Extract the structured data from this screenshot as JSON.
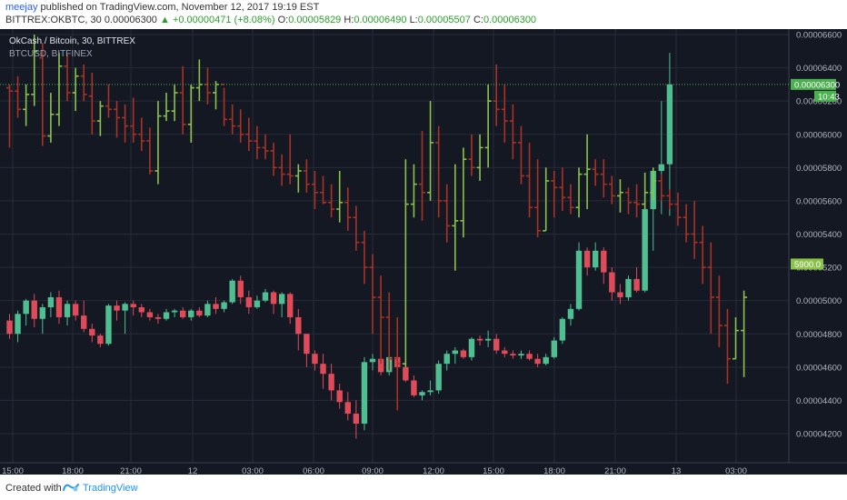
{
  "header": {
    "author": "meejay",
    "published_text": " published on TradingView.com, November 12, 2017 19:19 EST",
    "symbol": "BITTREX:OKBTC, 30",
    "price": "0.00006300",
    "change": "+0.00000471 (+8.08%)",
    "o_label": "O:",
    "o_value": "0.00005829",
    "h_label": "H:",
    "h_value": "0.00006490",
    "l_label": "L:",
    "l_value": "0.00005507",
    "c_label": "C:",
    "c_value": "0.00006300"
  },
  "overlay": {
    "title": "OkCash / Bitcoin, 30, BITTREX",
    "subtitle": "BTCUSD, BITFINEX"
  },
  "footer": {
    "created_with": "Created with",
    "brand": "TradingView"
  },
  "colors": {
    "background": "#141823",
    "grid": "#262b38",
    "up_bar": "#8bc34a",
    "down_bar": "#a93226",
    "up_candle": "#4fbf92",
    "down_candle": "#e04b5a",
    "price_label": "#4caf50",
    "btc_label": "#8bc34a"
  },
  "chart_data": {
    "type": "ohlc",
    "y_axis": {
      "ticks": [
        "0.00006600",
        "0.00006400",
        "0.00006200",
        "0.00006000",
        "0.00005800",
        "0.00005600",
        "0.00005400",
        "0.00005200",
        "0.00005000",
        "0.00004800",
        "0.00004600",
        "0.00004400",
        "0.00004200"
      ],
      "range": [
        4.1e-05,
        6.68e-05
      ]
    },
    "x_axis": {
      "ticks": [
        "15:00",
        "18:00",
        "21:00",
        "12",
        "03:00",
        "06:00",
        "09:00",
        "12:00",
        "15:00",
        "18:00",
        "21:00",
        "13",
        "03:00"
      ]
    },
    "last_price_label": "0.00006300",
    "countdown_label": "10:43",
    "btc_price_label": "5900.0",
    "okbtc_bars": [
      {
        "o": 62.8,
        "h": 63.0,
        "l": 59.2,
        "c": 62.6
      },
      {
        "o": 62.6,
        "h": 63.5,
        "l": 61.0,
        "c": 61.5
      },
      {
        "o": 61.5,
        "h": 63.0,
        "l": 60.5,
        "c": 62.4
      },
      {
        "o": 62.4,
        "h": 66.0,
        "l": 61.7,
        "c": 65.0
      },
      {
        "o": 64.6,
        "h": 65.5,
        "l": 59.3,
        "c": 59.9
      },
      {
        "o": 59.9,
        "h": 62.5,
        "l": 59.5,
        "c": 61.2
      },
      {
        "o": 61.2,
        "h": 64.9,
        "l": 60.5,
        "c": 64.1
      },
      {
        "o": 64.1,
        "h": 64.8,
        "l": 62.0,
        "c": 62.5
      },
      {
        "o": 62.5,
        "h": 64.0,
        "l": 61.4,
        "c": 63.5
      },
      {
        "o": 63.5,
        "h": 64.2,
        "l": 62.0,
        "c": 62.4
      },
      {
        "o": 62.3,
        "h": 63.7,
        "l": 60.0,
        "c": 60.8
      },
      {
        "o": 60.8,
        "h": 62.0,
        "l": 59.9,
        "c": 61.7
      },
      {
        "o": 61.7,
        "h": 63.0,
        "l": 61.0,
        "c": 61.5
      },
      {
        "o": 61.5,
        "h": 62.0,
        "l": 59.8,
        "c": 61.0
      },
      {
        "o": 61.0,
        "h": 61.8,
        "l": 59.5,
        "c": 60.5
      },
      {
        "o": 60.5,
        "h": 62.2,
        "l": 59.5,
        "c": 60.0
      },
      {
        "o": 60.0,
        "h": 61.0,
        "l": 59.0,
        "c": 59.6
      },
      {
        "o": 59.6,
        "h": 60.4,
        "l": 57.6,
        "c": 57.8
      },
      {
        "o": 57.8,
        "h": 62.0,
        "l": 57.0,
        "c": 61.1
      },
      {
        "o": 61.1,
        "h": 62.5,
        "l": 60.8,
        "c": 61.4
      },
      {
        "o": 61.4,
        "h": 63.0,
        "l": 60.8,
        "c": 62.5
      },
      {
        "o": 62.5,
        "h": 64.1,
        "l": 60.0,
        "c": 60.6
      },
      {
        "o": 60.6,
        "h": 63.0,
        "l": 59.5,
        "c": 62.8
      },
      {
        "o": 62.8,
        "h": 64.5,
        "l": 62.0,
        "c": 63.0
      },
      {
        "o": 63.0,
        "h": 64.0,
        "l": 61.8,
        "c": 62.5
      },
      {
        "o": 62.5,
        "h": 63.2,
        "l": 61.5,
        "c": 63.0
      },
      {
        "o": 63.0,
        "h": 62.8,
        "l": 60.5,
        "c": 60.9
      },
      {
        "o": 60.9,
        "h": 61.8,
        "l": 60.0,
        "c": 60.5
      },
      {
        "o": 60.5,
        "h": 61.5,
        "l": 59.5,
        "c": 60.0
      },
      {
        "o": 60.0,
        "h": 61.0,
        "l": 59.0,
        "c": 59.6
      },
      {
        "o": 59.6,
        "h": 60.5,
        "l": 58.5,
        "c": 59.2
      },
      {
        "o": 59.2,
        "h": 60.0,
        "l": 58.5,
        "c": 59.0
      },
      {
        "o": 59.0,
        "h": 59.5,
        "l": 57.5,
        "c": 58.0
      },
      {
        "o": 58.0,
        "h": 58.8,
        "l": 56.9,
        "c": 57.6
      },
      {
        "o": 57.6,
        "h": 60.0,
        "l": 57.0,
        "c": 57.5
      },
      {
        "o": 57.5,
        "h": 58.2,
        "l": 56.5,
        "c": 57.8
      },
      {
        "o": 57.8,
        "h": 58.5,
        "l": 56.5,
        "c": 57.0
      },
      {
        "o": 57.0,
        "h": 57.8,
        "l": 55.5,
        "c": 56.5
      },
      {
        "o": 56.5,
        "h": 57.5,
        "l": 55.8,
        "c": 55.9
      },
      {
        "o": 55.9,
        "h": 57.0,
        "l": 55.0,
        "c": 55.5
      },
      {
        "o": 55.5,
        "h": 57.8,
        "l": 54.7,
        "c": 55.9
      },
      {
        "o": 55.9,
        "h": 56.8,
        "l": 54.2,
        "c": 55.0
      },
      {
        "o": 55.0,
        "h": 55.7,
        "l": 53.0,
        "c": 53.5
      },
      {
        "o": 53.5,
        "h": 54.2,
        "l": 51.0,
        "c": 52.0
      },
      {
        "o": 52.0,
        "h": 52.8,
        "l": 48.0,
        "c": 50.2
      },
      {
        "o": 50.2,
        "h": 51.5,
        "l": 46.2,
        "c": 49.0
      },
      {
        "o": 49.0,
        "h": 50.5,
        "l": 45.8,
        "c": 46.5
      },
      {
        "o": 46.5,
        "h": 49.0,
        "l": 43.4,
        "c": 46.2
      },
      {
        "o": 46.2,
        "h": 58.5,
        "l": 46.0,
        "c": 55.8
      },
      {
        "o": 55.8,
        "h": 58.2,
        "l": 55.0,
        "c": 57.0
      },
      {
        "o": 57.0,
        "h": 60.2,
        "l": 54.8,
        "c": 56.5
      },
      {
        "o": 56.5,
        "h": 62.0,
        "l": 56.0,
        "c": 59.5
      },
      {
        "o": 59.5,
        "h": 60.5,
        "l": 55.0,
        "c": 56.0
      },
      {
        "o": 56.0,
        "h": 57.0,
        "l": 53.5,
        "c": 54.5
      },
      {
        "o": 54.5,
        "h": 58.2,
        "l": 51.8,
        "c": 54.8
      },
      {
        "o": 54.8,
        "h": 59.2,
        "l": 53.8,
        "c": 58.5
      },
      {
        "o": 58.5,
        "h": 60.0,
        "l": 57.5,
        "c": 58.0
      },
      {
        "o": 58.0,
        "h": 60.0,
        "l": 57.2,
        "c": 59.2
      },
      {
        "o": 59.2,
        "h": 63.0,
        "l": 58.0,
        "c": 62.0
      },
      {
        "o": 62.0,
        "h": 64.2,
        "l": 60.5,
        "c": 61.5
      },
      {
        "o": 61.5,
        "h": 63.0,
        "l": 59.5,
        "c": 60.8
      },
      {
        "o": 60.8,
        "h": 61.8,
        "l": 58.5,
        "c": 59.5
      },
      {
        "o": 59.5,
        "h": 60.5,
        "l": 57.0,
        "c": 57.5
      },
      {
        "o": 57.5,
        "h": 59.5,
        "l": 55.0,
        "c": 55.6
      },
      {
        "o": 55.6,
        "h": 58.5,
        "l": 53.8,
        "c": 54.2
      },
      {
        "o": 54.2,
        "h": 58.0,
        "l": 54.2,
        "c": 57.2
      },
      {
        "o": 57.2,
        "h": 57.8,
        "l": 55.0,
        "c": 56.8
      },
      {
        "o": 56.8,
        "h": 58.0,
        "l": 55.4,
        "c": 56.2
      },
      {
        "o": 56.2,
        "h": 57.0,
        "l": 55.2,
        "c": 55.6
      },
      {
        "o": 55.6,
        "h": 58.0,
        "l": 55.0,
        "c": 57.6
      },
      {
        "o": 57.6,
        "h": 60.0,
        "l": 55.5,
        "c": 57.9
      },
      {
        "o": 57.9,
        "h": 58.5,
        "l": 56.9,
        "c": 57.6
      },
      {
        "o": 57.6,
        "h": 58.5,
        "l": 56.2,
        "c": 57.0
      },
      {
        "o": 57.0,
        "h": 57.5,
        "l": 55.8,
        "c": 56.3
      },
      {
        "o": 56.3,
        "h": 57.3,
        "l": 55.3,
        "c": 56.5
      },
      {
        "o": 56.5,
        "h": 56.8,
        "l": 55.2,
        "c": 55.9
      },
      {
        "o": 55.9,
        "h": 57.0,
        "l": 55.0,
        "c": 55.8
      },
      {
        "o": 55.8,
        "h": 57.7,
        "l": 55.5,
        "c": 56.5
      },
      {
        "o": 56.5,
        "h": 58.0,
        "l": 56.0,
        "c": 57.2
      },
      {
        "o": 57.2,
        "h": 57.6,
        "l": 56.0,
        "c": 56.3
      },
      {
        "o": 56.3,
        "h": 56.7,
        "l": 55.5,
        "c": 55.8
      },
      {
        "o": 55.8,
        "h": 56.5,
        "l": 54.5,
        "c": 55.0
      },
      {
        "o": 55.0,
        "h": 55.8,
        "l": 53.5,
        "c": 54.0
      },
      {
        "o": 54.0,
        "h": 56.0,
        "l": 52.5,
        "c": 53.5
      },
      {
        "o": 53.5,
        "h": 54.5,
        "l": 51.0,
        "c": 52.0
      },
      {
        "o": 52.0,
        "h": 53.5,
        "l": 48.0,
        "c": 50.2
      },
      {
        "o": 50.2,
        "h": 51.5,
        "l": 47.2,
        "c": 48.5
      },
      {
        "o": 48.5,
        "h": 49.5,
        "l": 45.0,
        "c": 46.5
      },
      {
        "o": 46.5,
        "h": 49.0,
        "l": 46.5,
        "c": 48.2
      },
      {
        "o": 48.2,
        "h": 50.6,
        "l": 45.4,
        "c": 50.2
      }
    ],
    "btcusd_candles": [
      {
        "o": 48.8,
        "h": 49.2,
        "l": 47.7,
        "c": 48.0
      },
      {
        "o": 48.0,
        "h": 49.4,
        "l": 47.5,
        "c": 49.2
      },
      {
        "o": 49.2,
        "h": 50.1,
        "l": 48.5,
        "c": 50.0
      },
      {
        "o": 50.0,
        "h": 50.4,
        "l": 48.4,
        "c": 48.9
      },
      {
        "o": 48.9,
        "h": 49.8,
        "l": 48.0,
        "c": 49.6
      },
      {
        "o": 49.6,
        "h": 50.5,
        "l": 49.0,
        "c": 50.2
      },
      {
        "o": 50.2,
        "h": 50.6,
        "l": 48.6,
        "c": 49.0
      },
      {
        "o": 49.0,
        "h": 50.0,
        "l": 48.5,
        "c": 49.8
      },
      {
        "o": 49.8,
        "h": 50.0,
        "l": 48.8,
        "c": 49.1
      },
      {
        "o": 49.1,
        "h": 50.0,
        "l": 48.1,
        "c": 48.3
      },
      {
        "o": 48.3,
        "h": 48.6,
        "l": 47.5,
        "c": 47.9
      },
      {
        "o": 47.9,
        "h": 48.0,
        "l": 47.2,
        "c": 47.4
      },
      {
        "o": 47.4,
        "h": 49.8,
        "l": 47.3,
        "c": 49.7
      },
      {
        "o": 49.7,
        "h": 50.0,
        "l": 48.8,
        "c": 49.4
      },
      {
        "o": 49.4,
        "h": 49.9,
        "l": 48.0,
        "c": 49.8
      },
      {
        "o": 49.8,
        "h": 50.0,
        "l": 49.1,
        "c": 49.6
      },
      {
        "o": 49.6,
        "h": 49.8,
        "l": 49.0,
        "c": 49.3
      },
      {
        "o": 49.3,
        "h": 49.5,
        "l": 48.8,
        "c": 49.0
      },
      {
        "o": 49.0,
        "h": 49.2,
        "l": 48.6,
        "c": 48.9
      },
      {
        "o": 48.9,
        "h": 49.5,
        "l": 48.8,
        "c": 49.3
      },
      {
        "o": 49.3,
        "h": 49.5,
        "l": 49.0,
        "c": 49.4
      },
      {
        "o": 49.4,
        "h": 49.6,
        "l": 48.9,
        "c": 49.0
      },
      {
        "o": 49.0,
        "h": 49.5,
        "l": 48.8,
        "c": 49.4
      },
      {
        "o": 49.4,
        "h": 49.6,
        "l": 49.0,
        "c": 49.1
      },
      {
        "o": 49.1,
        "h": 50.0,
        "l": 49.0,
        "c": 49.8
      },
      {
        "o": 49.8,
        "h": 50.2,
        "l": 49.2,
        "c": 49.5
      },
      {
        "o": 49.5,
        "h": 50.0,
        "l": 49.3,
        "c": 49.9
      },
      {
        "o": 49.9,
        "h": 51.3,
        "l": 49.8,
        "c": 51.2
      },
      {
        "o": 51.2,
        "h": 51.5,
        "l": 49.8,
        "c": 50.2
      },
      {
        "o": 50.2,
        "h": 50.6,
        "l": 49.2,
        "c": 49.6
      },
      {
        "o": 49.6,
        "h": 50.3,
        "l": 49.5,
        "c": 50.0
      },
      {
        "o": 50.0,
        "h": 50.7,
        "l": 49.9,
        "c": 50.5
      },
      {
        "o": 50.5,
        "h": 50.6,
        "l": 49.2,
        "c": 49.8
      },
      {
        "o": 49.8,
        "h": 50.5,
        "l": 49.0,
        "c": 50.4
      },
      {
        "o": 50.4,
        "h": 50.5,
        "l": 48.6,
        "c": 49.0
      },
      {
        "o": 49.0,
        "h": 49.5,
        "l": 47.0,
        "c": 48.0
      },
      {
        "o": 48.0,
        "h": 48.0,
        "l": 46.0,
        "c": 46.8
      },
      {
        "o": 46.8,
        "h": 47.0,
        "l": 45.8,
        "c": 46.2
      },
      {
        "o": 46.2,
        "h": 46.8,
        "l": 44.7,
        "c": 45.6
      },
      {
        "o": 45.6,
        "h": 46.2,
        "l": 44.0,
        "c": 44.6
      },
      {
        "o": 44.6,
        "h": 45.0,
        "l": 43.5,
        "c": 43.9
      },
      {
        "o": 43.9,
        "h": 44.5,
        "l": 42.8,
        "c": 43.2
      },
      {
        "o": 43.2,
        "h": 44.0,
        "l": 41.7,
        "c": 42.6
      },
      {
        "o": 42.6,
        "h": 46.6,
        "l": 42.2,
        "c": 46.3
      },
      {
        "o": 46.3,
        "h": 46.8,
        "l": 45.8,
        "c": 46.5
      },
      {
        "o": 46.5,
        "h": 46.6,
        "l": 45.5,
        "c": 45.7
      },
      {
        "o": 45.7,
        "h": 46.9,
        "l": 45.5,
        "c": 46.6
      },
      {
        "o": 46.6,
        "h": 46.7,
        "l": 45.8,
        "c": 46.0
      },
      {
        "o": 46.0,
        "h": 46.3,
        "l": 45.1,
        "c": 45.2
      },
      {
        "o": 45.2,
        "h": 45.5,
        "l": 44.2,
        "c": 44.3
      },
      {
        "o": 44.3,
        "h": 44.6,
        "l": 44.0,
        "c": 44.5
      },
      {
        "o": 44.5,
        "h": 45.2,
        "l": 44.3,
        "c": 44.6
      },
      {
        "o": 44.6,
        "h": 46.4,
        "l": 44.4,
        "c": 46.2
      },
      {
        "o": 46.2,
        "h": 47.0,
        "l": 45.8,
        "c": 46.8
      },
      {
        "o": 46.8,
        "h": 47.2,
        "l": 46.2,
        "c": 47.0
      },
      {
        "o": 47.0,
        "h": 47.1,
        "l": 46.5,
        "c": 46.6
      },
      {
        "o": 46.6,
        "h": 47.8,
        "l": 46.4,
        "c": 47.7
      },
      {
        "o": 47.7,
        "h": 47.9,
        "l": 47.3,
        "c": 47.6
      },
      {
        "o": 47.6,
        "h": 48.2,
        "l": 47.2,
        "c": 47.7
      },
      {
        "o": 47.7,
        "h": 48.0,
        "l": 46.8,
        "c": 47.0
      },
      {
        "o": 47.0,
        "h": 47.2,
        "l": 46.6,
        "c": 46.8
      },
      {
        "o": 46.8,
        "h": 47.0,
        "l": 46.5,
        "c": 46.7
      },
      {
        "o": 46.7,
        "h": 47.0,
        "l": 46.5,
        "c": 46.8
      },
      {
        "o": 46.8,
        "h": 47.0,
        "l": 46.4,
        "c": 46.5
      },
      {
        "o": 46.5,
        "h": 46.8,
        "l": 46.0,
        "c": 46.2
      },
      {
        "o": 46.2,
        "h": 46.8,
        "l": 46.1,
        "c": 46.6
      },
      {
        "o": 46.6,
        "h": 47.8,
        "l": 46.5,
        "c": 47.6
      },
      {
        "o": 47.6,
        "h": 49.0,
        "l": 47.4,
        "c": 48.9
      },
      {
        "o": 48.9,
        "h": 49.8,
        "l": 48.5,
        "c": 49.5
      },
      {
        "o": 49.5,
        "h": 53.5,
        "l": 49.4,
        "c": 53.0
      },
      {
        "o": 53.0,
        "h": 53.2,
        "l": 51.5,
        "c": 52.0
      },
      {
        "o": 52.0,
        "h": 53.5,
        "l": 51.8,
        "c": 53.0
      },
      {
        "o": 53.0,
        "h": 53.2,
        "l": 51.0,
        "c": 51.7
      },
      {
        "o": 51.7,
        "h": 52.0,
        "l": 50.0,
        "c": 50.5
      },
      {
        "o": 50.5,
        "h": 51.0,
        "l": 49.8,
        "c": 50.2
      },
      {
        "o": 50.2,
        "h": 51.5,
        "l": 50.0,
        "c": 51.3
      },
      {
        "o": 51.3,
        "h": 52.0,
        "l": 50.5,
        "c": 50.6
      },
      {
        "o": 50.6,
        "h": 55.8,
        "l": 50.5,
        "c": 55.5
      },
      {
        "o": 55.5,
        "h": 58.0,
        "l": 53.0,
        "c": 57.8
      },
      {
        "o": 57.8,
        "h": 62.0,
        "l": 55.2,
        "c": 58.2
      },
      {
        "o": 58.2,
        "h": 64.9,
        "l": 55.1,
        "c": 63.0
      }
    ]
  }
}
